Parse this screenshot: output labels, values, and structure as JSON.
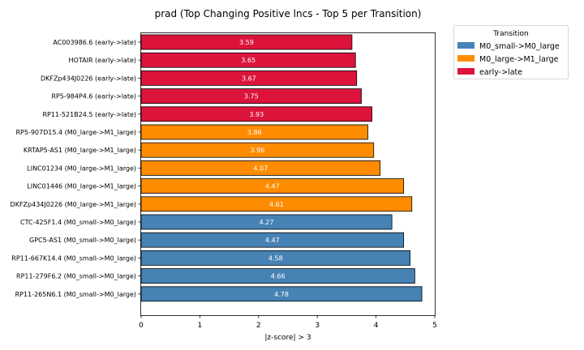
{
  "chart_data": {
    "type": "bar",
    "orientation": "horizontal",
    "title": "prad (Top Changing Positive lncs - Top 5 per Transition)",
    "xlabel": "|z-score| > 3",
    "ylabel": "",
    "xlim": [
      0,
      5
    ],
    "xticks": [
      0,
      1,
      2,
      3,
      4,
      5
    ],
    "grid": false,
    "legend": {
      "title": "Transition",
      "placement": "outside-right-top",
      "entries": [
        {
          "name": "M0_small->M0_large",
          "color": "#4682b4"
        },
        {
          "name": "M0_large->M1_large",
          "color": "#ff8c00"
        },
        {
          "name": "early->late",
          "color": "#dc143c"
        }
      ]
    },
    "categories": [
      "AC003986.6 (early->late)",
      "HOTAIR (early->late)",
      "DKFZp434J0226 (early->late)",
      "RP5-984P4.6 (early->late)",
      "RP11-521B24.5 (early->late)",
      "RP5-907D15.4 (M0_large->M1_large)",
      "KRTAP5-AS1 (M0_large->M1_large)",
      "LINC01234 (M0_large->M1_large)",
      "LINC01446 (M0_large->M1_large)",
      "DKFZp434J0226 (M0_large->M1_large)",
      "CTC-425F1.4 (M0_small->M0_large)",
      "GPC5-AS1 (M0_small->M0_large)",
      "RP11-667K14.4 (M0_small->M0_large)",
      "RP11-279F6.2 (M0_small->M0_large)",
      "RP11-265N6.1 (M0_small->M0_large)"
    ],
    "values": [
      3.59,
      3.65,
      3.67,
      3.75,
      3.93,
      3.86,
      3.96,
      4.07,
      4.47,
      4.61,
      4.27,
      4.47,
      4.58,
      4.66,
      4.78
    ],
    "value_labels": [
      "3.59",
      "3.65",
      "3.67",
      "3.75",
      "3.93",
      "3.86",
      "3.96",
      "4.07",
      "4.47",
      "4.61",
      "4.27",
      "4.47",
      "4.58",
      "4.66",
      "4.78"
    ],
    "series_of_category": [
      2,
      2,
      2,
      2,
      2,
      1,
      1,
      1,
      1,
      1,
      0,
      0,
      0,
      0,
      0
    ]
  }
}
